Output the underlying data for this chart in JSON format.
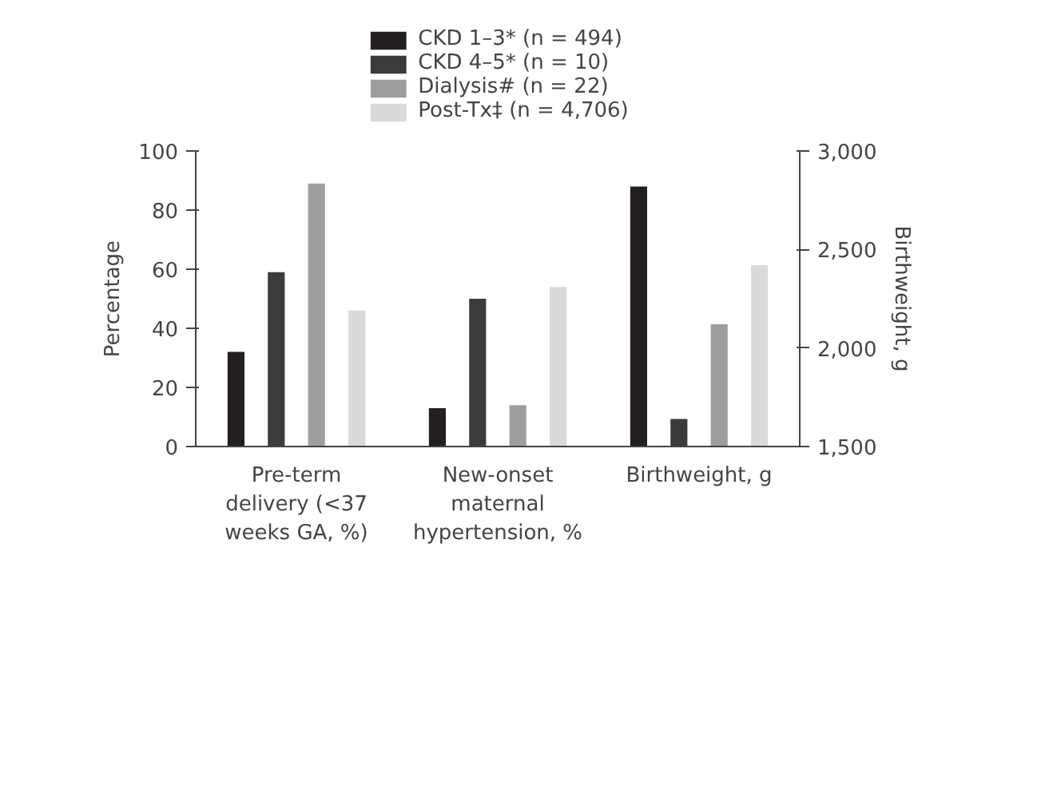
{
  "chart_data": {
    "type": "bar",
    "ylabel": "Percentage",
    "y2label": "Birthweight, g",
    "categories": [
      "Pre-term\ndelivery (<37\nweeks GA, %)",
      "New-onset\nmaternal\nhypertension, %",
      "Birthweight, g"
    ],
    "series": [
      {
        "name": "CKD 1–3* (n = 494)",
        "color": "#231f20",
        "values": [
          32,
          13,
          null
        ]
      },
      {
        "name": "CKD 4–5* (n = 10)",
        "color": "#3b3b3b",
        "values": [
          59,
          50,
          null
        ]
      },
      {
        "name": "Dialysis# (n = 22)",
        "color": "#9d9ea0",
        "values": [
          89,
          14,
          null
        ]
      },
      {
        "name": "Post-Tx‡ (n = 4,706)",
        "color": "#d9dadb",
        "values": [
          46,
          54,
          null
        ]
      },
      {
        "color": "#231f20",
        "axis": "y2",
        "values": [
          null,
          null,
          2820
        ]
      },
      {
        "color": "#3b3b3b",
        "axis": "y2",
        "values": [
          null,
          null,
          1640
        ]
      },
      {
        "color": "#9d9ea0",
        "axis": "y2",
        "values": [
          null,
          null,
          2120
        ]
      },
      {
        "color": "#d9dadb",
        "axis": "y2",
        "values": [
          null,
          null,
          2420
        ]
      }
    ],
    "ylim": [
      0,
      100
    ],
    "yticks": [
      0,
      20,
      40,
      60,
      80,
      100
    ],
    "y2lim": [
      1500,
      3000
    ],
    "y2ticks": [
      {
        "value": 1500,
        "label": "1,500"
      },
      {
        "value": 2000,
        "label": "2,000"
      },
      {
        "value": 2500,
        "label": "2,500"
      },
      {
        "value": 3000,
        "label": "3,000"
      }
    ],
    "grid": false,
    "legend": "top"
  }
}
